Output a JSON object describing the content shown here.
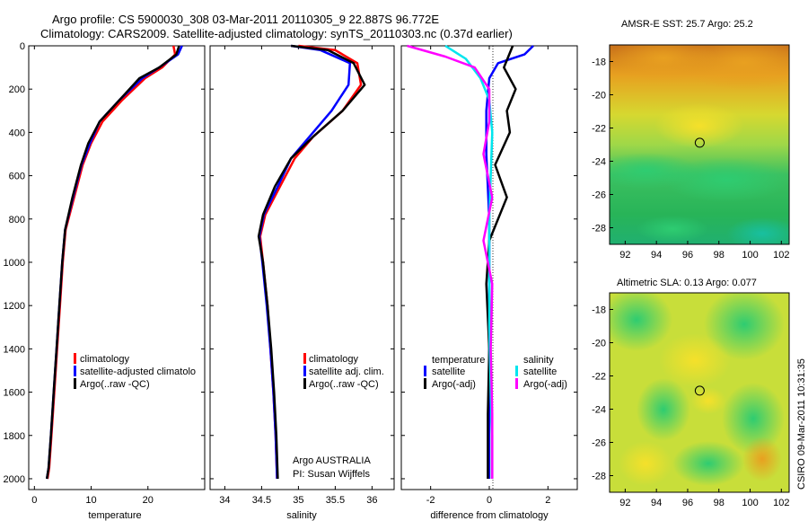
{
  "header": {
    "line1": "Argo profile: CS 5900030_308 03-Mar-2011 20110305_9 22.887S 96.772E",
    "line2": "Climatology: CARS2009. Satellite-adjusted climatology: synTS_20110303.nc (0.37d earlier)"
  },
  "chart_data": [
    {
      "type": "line",
      "xlabel": "temperature",
      "xlim": [
        -1,
        30
      ],
      "ylim": [
        2050,
        0
      ],
      "xticks": [
        0,
        10,
        20
      ],
      "yticks": [
        0,
        200,
        400,
        600,
        800,
        1000,
        1200,
        1400,
        1600,
        1800,
        2000
      ],
      "legend": [
        "climatology",
        "satellite-adjusted climatolo",
        "Argo(..raw -QC)"
      ],
      "series": [
        {
          "name": "climatology",
          "color": "#ff0000",
          "x": [
            24.5,
            24.8,
            22.5,
            19.5,
            15.5,
            12.0,
            10.0,
            8.5,
            7.0,
            5.5,
            5.0,
            4.5,
            4.0,
            3.5,
            3.0,
            2.6,
            2.3
          ],
          "y": [
            0,
            40,
            100,
            150,
            250,
            350,
            450,
            550,
            700,
            850,
            1000,
            1200,
            1400,
            1600,
            1800,
            1950,
            2000
          ]
        },
        {
          "name": "satellite-adjusted climatolo",
          "color": "#0000ff",
          "x": [
            26.0,
            25.3,
            22.0,
            19.0,
            15.0,
            11.5,
            9.8,
            8.3,
            6.8,
            5.4,
            4.9,
            4.4,
            3.9,
            3.4,
            2.9,
            2.5,
            2.2
          ],
          "y": [
            0,
            40,
            100,
            150,
            250,
            350,
            450,
            550,
            700,
            850,
            1000,
            1200,
            1400,
            1600,
            1800,
            1950,
            2000
          ]
        },
        {
          "name": "Argo(..raw -QC)",
          "color": "#000000",
          "x": [
            25.5,
            25.0,
            22.0,
            18.5,
            15.0,
            11.5,
            9.5,
            8.2,
            6.7,
            5.4,
            4.9,
            4.4,
            3.9,
            3.4,
            2.9,
            2.5,
            2.2
          ],
          "y": [
            0,
            40,
            100,
            150,
            250,
            350,
            450,
            550,
            700,
            850,
            1000,
            1200,
            1400,
            1600,
            1800,
            1950,
            2000
          ]
        }
      ]
    },
    {
      "type": "line",
      "xlabel": "salinity",
      "xlim": [
        33.8,
        36.3
      ],
      "ylim": [
        2050,
        0
      ],
      "xticks": [
        34,
        34.5,
        35,
        35.5,
        36
      ],
      "legend": [
        "climatology",
        "satellite adj. clim.",
        "Argo(..raw -QC)"
      ],
      "annotation": [
        "Argo AUSTRALIA",
        "PI: Susan Wijffels"
      ],
      "series": [
        {
          "name": "climatology",
          "color": "#ff0000",
          "x": [
            35.0,
            35.5,
            35.8,
            35.85,
            35.6,
            35.2,
            34.95,
            34.75,
            34.55,
            34.48,
            34.52,
            34.58,
            34.62,
            34.66,
            34.69,
            34.71
          ],
          "y": [
            0,
            20,
            80,
            180,
            300,
            420,
            520,
            650,
            780,
            880,
            1000,
            1200,
            1400,
            1600,
            1800,
            2000
          ]
        },
        {
          "name": "satellite adj. clim.",
          "color": "#0000ff",
          "x": [
            34.9,
            35.3,
            35.7,
            35.68,
            35.45,
            35.15,
            34.9,
            34.72,
            34.53,
            34.47,
            34.51,
            34.57,
            34.62,
            34.66,
            34.69,
            34.71
          ],
          "y": [
            0,
            20,
            80,
            180,
            300,
            420,
            520,
            650,
            780,
            880,
            1000,
            1200,
            1400,
            1600,
            1800,
            2000
          ]
        },
        {
          "name": "Argo(..raw -QC)",
          "color": "#000000",
          "x": [
            34.9,
            35.4,
            35.75,
            35.9,
            35.6,
            35.2,
            34.9,
            34.68,
            34.52,
            34.46,
            34.52,
            34.58,
            34.63,
            34.67,
            34.7,
            34.72
          ],
          "y": [
            0,
            20,
            80,
            180,
            300,
            420,
            520,
            650,
            780,
            880,
            1000,
            1200,
            1400,
            1600,
            1800,
            2000
          ]
        }
      ]
    },
    {
      "type": "line",
      "xlabel": "difference from climatology",
      "xlim": [
        -3,
        3
      ],
      "ylim": [
        2050,
        0
      ],
      "xticks": [
        -2,
        0,
        2
      ],
      "legend_titles": [
        "temperature",
        "salinity"
      ],
      "legend": [
        "satellite",
        "Argo(-adj)",
        "satellite",
        "Argo(-adj)"
      ],
      "series": [
        {
          "name": "temperature satellite",
          "color": "#0000ff",
          "x": [
            1.5,
            1.2,
            0.3,
            0.0,
            -0.1,
            -0.1,
            0.0,
            0.0,
            0.0,
            0.0,
            0.0,
            0.0
          ],
          "y": [
            0,
            40,
            80,
            150,
            300,
            500,
            800,
            1000,
            1200,
            1500,
            1800,
            2000
          ]
        },
        {
          "name": "temperature Argo(-adj)",
          "color": "#000000",
          "x": [
            0.8,
            0.5,
            0.9,
            0.6,
            0.7,
            0.2,
            0.6,
            0.0,
            -0.1,
            0.0,
            -0.05,
            -0.05
          ],
          "y": [
            0,
            100,
            200,
            300,
            400,
            550,
            700,
            900,
            1100,
            1400,
            1700,
            2000
          ]
        },
        {
          "name": "salinity satellite",
          "color": "#00e5ee",
          "x": [
            -1.5,
            -0.8,
            -0.3,
            0.0,
            0.1,
            0.05,
            0.0,
            0.0,
            0.0,
            0.05,
            0.1,
            0.1
          ],
          "y": [
            0,
            60,
            150,
            250,
            400,
            600,
            800,
            1000,
            1300,
            1600,
            1800,
            2000
          ]
        },
        {
          "name": "salinity Argo(-adj)",
          "color": "#ff00ff",
          "x": [
            -2.8,
            -1.5,
            -0.5,
            0.0,
            0.0,
            -0.2,
            0.1,
            -0.2,
            0.1,
            0.05,
            0.1,
            0.1
          ],
          "y": [
            0,
            50,
            100,
            200,
            350,
            500,
            700,
            900,
            1100,
            1400,
            1700,
            2000
          ]
        }
      ]
    }
  ],
  "maps": [
    {
      "title": "AMSR-E SST: 25.7 Argo: 25.2",
      "xticks": [
        92,
        94,
        96,
        98,
        100,
        102
      ],
      "yticks": [
        -18,
        -20,
        -22,
        -24,
        -26,
        -28
      ],
      "marker": [
        96.772,
        -22.887
      ]
    },
    {
      "title": "Altimetric SLA: 0.13 Argo: 0.077",
      "xticks": [
        92,
        94,
        96,
        98,
        100,
        102
      ],
      "yticks": [
        -18,
        -20,
        -22,
        -24,
        -26,
        -28
      ],
      "marker": [
        96.772,
        -22.887
      ]
    }
  ],
  "footer": "CSIRO 09-Mar-2011 10:31:35"
}
